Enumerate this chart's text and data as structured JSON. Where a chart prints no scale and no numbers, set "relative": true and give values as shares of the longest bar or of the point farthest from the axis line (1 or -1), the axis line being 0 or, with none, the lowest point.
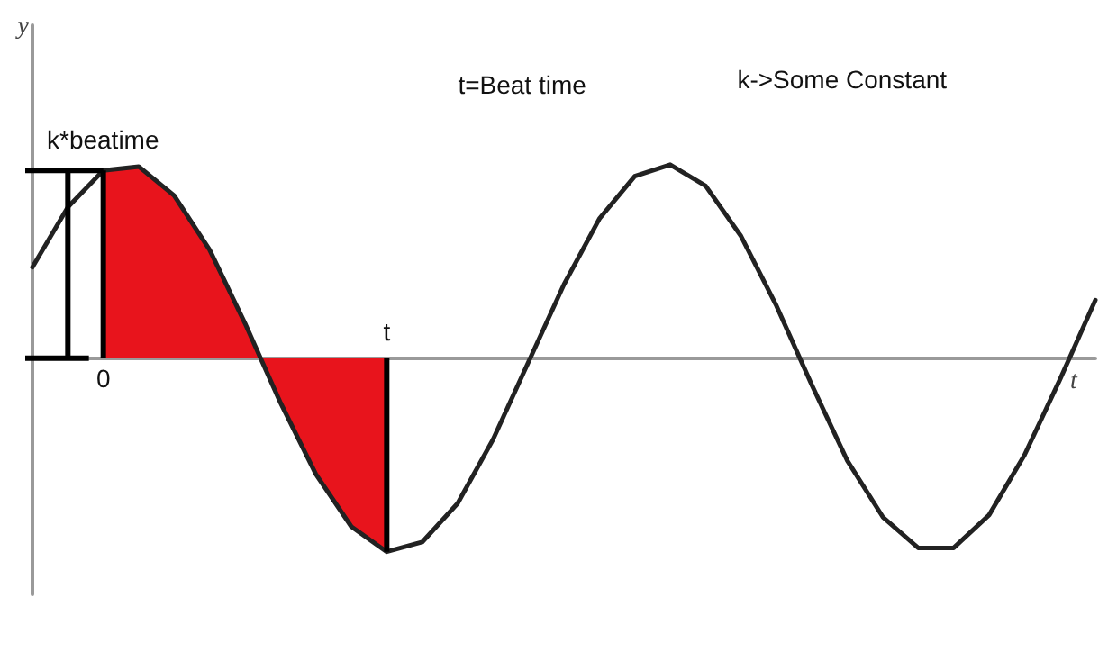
{
  "chart_data": {
    "type": "line",
    "relative": true,
    "xlabel": "t",
    "ylabel": "y",
    "categories": [
      null,
      null,
      null,
      null,
      null,
      null,
      null,
      null,
      null,
      null,
      null,
      null,
      null,
      null,
      null,
      null,
      null,
      null,
      null,
      null,
      null,
      null,
      null,
      null,
      null,
      null,
      null,
      null,
      null,
      null,
      null
    ],
    "series": [
      {
        "color": "#222222",
        "values": [
          0.47,
          0.78,
          0.97,
          0.99,
          0.84,
          0.56,
          0.18,
          -0.23,
          -0.6,
          -0.87,
          -1.0,
          -0.95,
          -0.75,
          -0.42,
          -0.02,
          0.38,
          0.72,
          0.94,
          1.0,
          0.89,
          0.63,
          0.27,
          -0.14,
          -0.53,
          -0.82,
          -0.98,
          -0.98,
          -0.81,
          -0.5,
          -0.11,
          0.3
        ]
      },
      {
        "type": "area",
        "color": "#e8141c",
        "values": [
          null,
          null,
          0.97,
          0.99,
          0.84,
          0.56,
          0.18,
          -0.23,
          -0.6,
          -0.87,
          -1.0,
          null,
          null,
          null,
          null,
          null,
          null,
          null,
          null,
          null,
          null,
          null,
          null,
          null,
          null,
          null,
          null,
          null,
          null,
          null,
          null
        ]
      }
    ],
    "annotations": [
      "k*beatime",
      "0",
      "t",
      "t=Beat time",
      "k->Some Constant"
    ]
  }
}
